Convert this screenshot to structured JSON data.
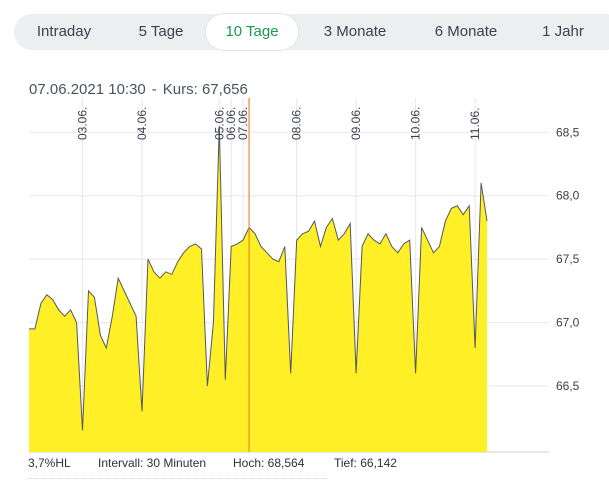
{
  "tabs": [
    {
      "label": "Intraday",
      "active": false
    },
    {
      "label": "5 Tage",
      "active": false
    },
    {
      "label": "10 Tage",
      "active": true
    },
    {
      "label": "3 Monate",
      "active": false
    },
    {
      "label": "6 Monate",
      "active": false
    },
    {
      "label": "1 Jahr",
      "active": false
    }
  ],
  "info": {
    "datetime": "07.06.2021 10:30",
    "separator": "-",
    "price_label": "Kurs:",
    "price_value": "67,656"
  },
  "footer": {
    "hl": "3,7%HL",
    "interval": "Intervall: 30 Minuten",
    "hoch": "Hoch:  68,564",
    "tief": "Tief:  66,142"
  },
  "colors": {
    "fill": "#ffef27",
    "line": "#55575a",
    "grid": "#e6e7ea",
    "cursor": "#f0882e",
    "active_tab": "#1a9a52",
    "tabbar_bg": "#eceef0"
  },
  "chart_data": {
    "type": "area",
    "y_axis": {
      "ticks": [
        "68,5",
        "68,0",
        "67,5",
        "67,0",
        "66,5"
      ],
      "tick_values": [
        68.5,
        68.0,
        67.5,
        67.0,
        66.5
      ],
      "position": "right"
    },
    "ylim": [
      65.98,
      68.77
    ],
    "x_axis": {
      "day_labels": [
        "03.06.",
        "04.06.",
        "05.06.",
        "06.06.",
        "07.06.",
        "08.06.",
        "09.06.",
        "10.06.",
        "11.06."
      ],
      "day_tick_index": [
        9,
        19,
        32,
        34,
        36,
        45,
        55,
        65,
        75
      ],
      "rotation": "vertical",
      "position": "top"
    },
    "cursor_index": 37,
    "cursor_value": 67.656,
    "series": [
      {
        "values": [
          66.95,
          66.95,
          67.15,
          67.22,
          67.18,
          67.1,
          67.05,
          67.1,
          67.0,
          66.15,
          67.25,
          67.2,
          66.9,
          66.8,
          67.05,
          67.35,
          67.25,
          67.15,
          67.05,
          66.3,
          67.5,
          67.4,
          67.35,
          67.4,
          67.38,
          67.48,
          67.55,
          67.6,
          67.62,
          67.58,
          66.5,
          67.0,
          68.55,
          66.55,
          67.6,
          67.62,
          67.65,
          67.75,
          67.7,
          67.6,
          67.55,
          67.5,
          67.48,
          67.6,
          66.6,
          67.65,
          67.7,
          67.72,
          67.8,
          67.6,
          67.75,
          67.82,
          67.65,
          67.7,
          67.78,
          66.6,
          67.6,
          67.7,
          67.65,
          67.62,
          67.7,
          67.6,
          67.55,
          67.62,
          67.65,
          66.6,
          67.75,
          67.65,
          67.55,
          67.6,
          67.8,
          67.9,
          67.92,
          67.85,
          67.92,
          66.8,
          68.1,
          67.8
        ]
      }
    ]
  }
}
